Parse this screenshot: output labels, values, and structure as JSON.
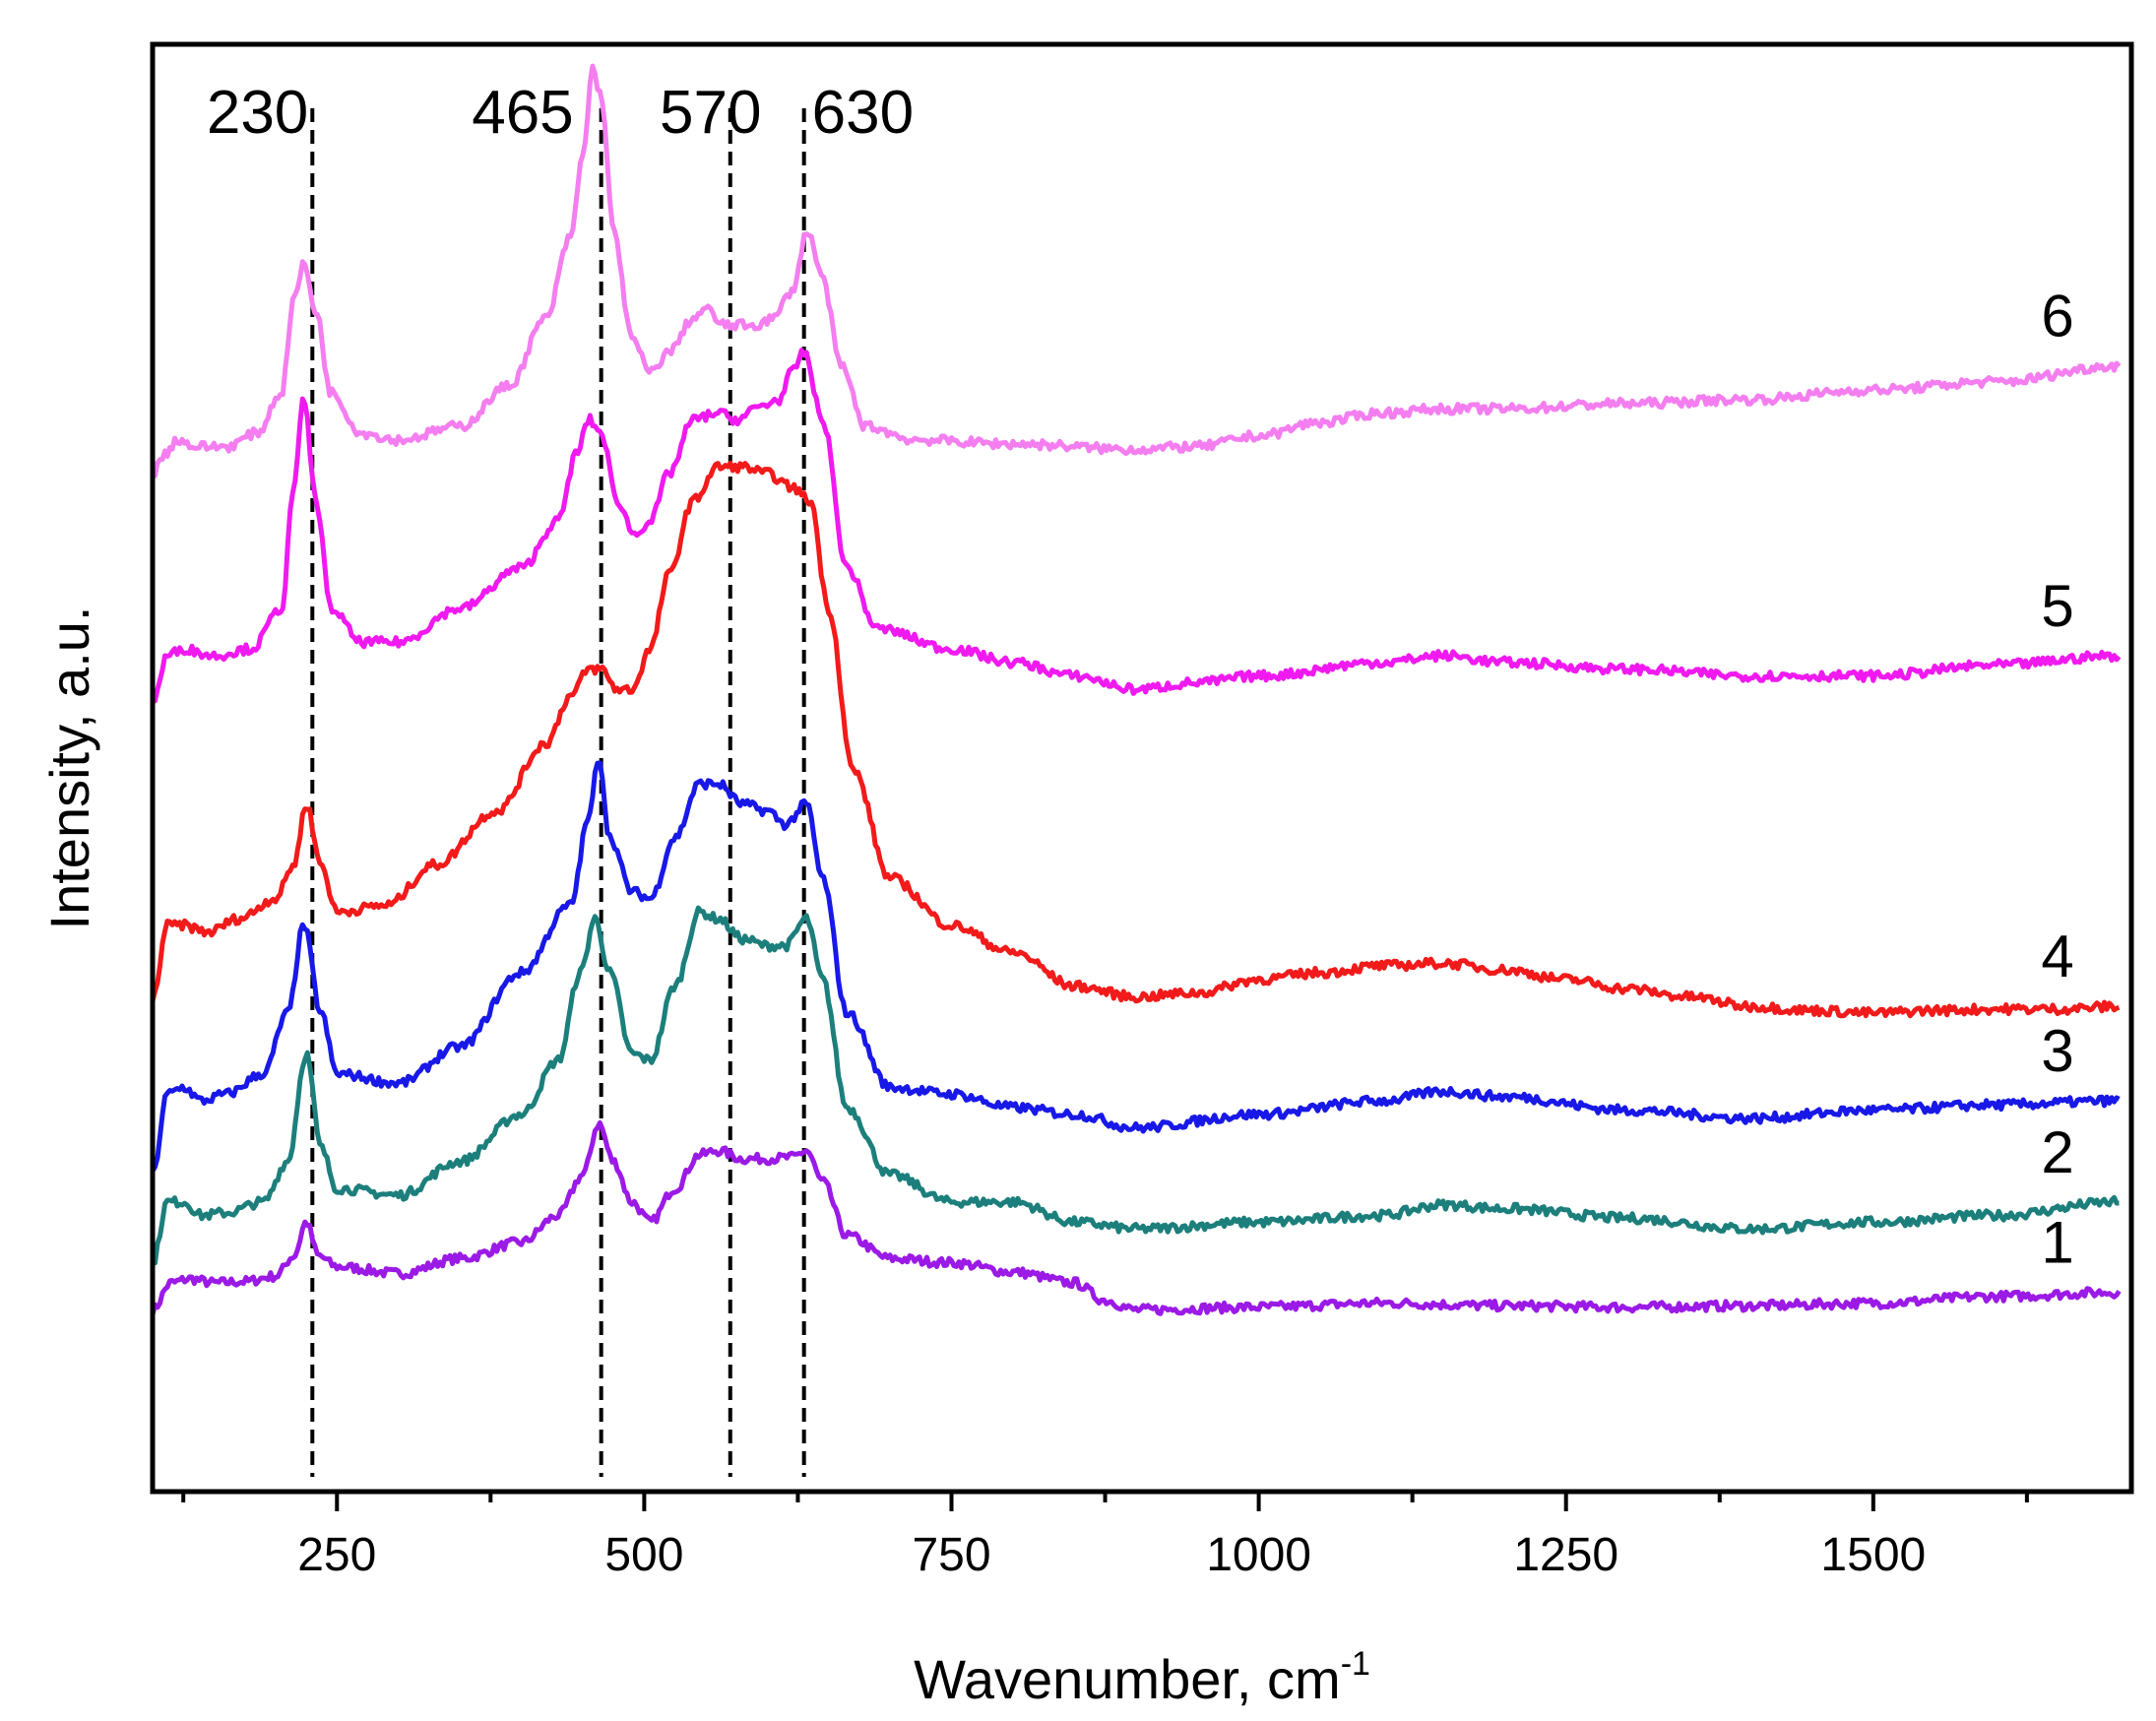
{
  "chart_data": {
    "type": "line",
    "title": "",
    "xlabel": "Wavenumber, cm",
    "xlabel_superscript": "-1",
    "ylabel": "Intensity, a.u.",
    "xlim": [
      100,
      1710
    ],
    "ylim": [
      0,
      1
    ],
    "y_ticks_shown": false,
    "grid": false,
    "x_ticks": [
      250,
      500,
      750,
      1000,
      1250,
      1500
    ],
    "x_tick_labels": [
      "250",
      "500",
      "750",
      "1000",
      "1250",
      "1500"
    ],
    "x_minor_ticks": [
      125,
      375,
      625,
      875,
      1125,
      1375,
      1625
    ],
    "reference_lines": [
      {
        "x": 230,
        "label": "230"
      },
      {
        "x": 465,
        "label": "465"
      },
      {
        "x": 570,
        "label": "570"
      },
      {
        "x": 630,
        "label": "630"
      }
    ],
    "series": [
      {
        "name": "1",
        "color": "#9B1AE6",
        "points": [
          [
            100,
            0.08
          ],
          [
            115,
            0.1
          ],
          [
            130,
            0.103
          ],
          [
            150,
            0.1
          ],
          [
            175,
            0.101
          ],
          [
            200,
            0.105
          ],
          [
            215,
            0.12
          ],
          [
            225,
            0.145
          ],
          [
            235,
            0.12
          ],
          [
            250,
            0.112
          ],
          [
            300,
            0.107
          ],
          [
            350,
            0.118
          ],
          [
            400,
            0.13
          ],
          [
            430,
            0.15
          ],
          [
            450,
            0.18
          ],
          [
            463,
            0.218
          ],
          [
            475,
            0.19
          ],
          [
            490,
            0.16
          ],
          [
            505,
            0.145
          ],
          [
            525,
            0.17
          ],
          [
            545,
            0.195
          ],
          [
            560,
            0.198
          ],
          [
            580,
            0.192
          ],
          [
            600,
            0.192
          ],
          [
            620,
            0.193
          ],
          [
            632,
            0.198
          ],
          [
            645,
            0.175
          ],
          [
            665,
            0.135
          ],
          [
            700,
            0.118
          ],
          [
            750,
            0.115
          ],
          [
            800,
            0.108
          ],
          [
            850,
            0.1
          ],
          [
            875,
            0.087
          ],
          [
            900,
            0.08
          ],
          [
            1000,
            0.082
          ],
          [
            1100,
            0.085
          ],
          [
            1200,
            0.083
          ],
          [
            1300,
            0.082
          ],
          [
            1400,
            0.083
          ],
          [
            1500,
            0.085
          ],
          [
            1600,
            0.09
          ],
          [
            1700,
            0.093
          ]
        ]
      },
      {
        "name": "2",
        "color": "#1C7F7C",
        "points": [
          [
            100,
            0.115
          ],
          [
            112,
            0.16
          ],
          [
            125,
            0.16
          ],
          [
            140,
            0.15
          ],
          [
            160,
            0.152
          ],
          [
            190,
            0.16
          ],
          [
            210,
            0.19
          ],
          [
            225,
            0.27
          ],
          [
            237,
            0.2
          ],
          [
            250,
            0.17
          ],
          [
            300,
            0.165
          ],
          [
            350,
            0.19
          ],
          [
            400,
            0.225
          ],
          [
            430,
            0.265
          ],
          [
            448,
            0.33
          ],
          [
            460,
            0.37
          ],
          [
            472,
            0.33
          ],
          [
            490,
            0.27
          ],
          [
            505,
            0.265
          ],
          [
            525,
            0.32
          ],
          [
            545,
            0.375
          ],
          [
            560,
            0.37
          ],
          [
            580,
            0.355
          ],
          [
            600,
            0.35
          ],
          [
            615,
            0.35
          ],
          [
            632,
            0.37
          ],
          [
            645,
            0.325
          ],
          [
            665,
            0.23
          ],
          [
            700,
            0.18
          ],
          [
            750,
            0.16
          ],
          [
            800,
            0.16
          ],
          [
            850,
            0.145
          ],
          [
            900,
            0.14
          ],
          [
            1000,
            0.145
          ],
          [
            1100,
            0.15
          ],
          [
            1150,
            0.158
          ],
          [
            1200,
            0.155
          ],
          [
            1300,
            0.148
          ],
          [
            1400,
            0.14
          ],
          [
            1500,
            0.145
          ],
          [
            1600,
            0.15
          ],
          [
            1700,
            0.16
          ]
        ]
      },
      {
        "name": "3",
        "color": "#1818E8",
        "points": [
          [
            100,
            0.18
          ],
          [
            112,
            0.24
          ],
          [
            125,
            0.245
          ],
          [
            140,
            0.235
          ],
          [
            160,
            0.24
          ],
          [
            190,
            0.255
          ],
          [
            210,
            0.3
          ],
          [
            223,
            0.365
          ],
          [
            237,
            0.3
          ],
          [
            250,
            0.255
          ],
          [
            300,
            0.248
          ],
          [
            350,
            0.275
          ],
          [
            400,
            0.33
          ],
          [
            440,
            0.38
          ],
          [
            455,
            0.445
          ],
          [
            463,
            0.49
          ],
          [
            472,
            0.43
          ],
          [
            490,
            0.39
          ],
          [
            505,
            0.385
          ],
          [
            525,
            0.43
          ],
          [
            545,
            0.47
          ],
          [
            560,
            0.47
          ],
          [
            580,
            0.455
          ],
          [
            600,
            0.45
          ],
          [
            615,
            0.44
          ],
          [
            632,
            0.455
          ],
          [
            645,
            0.4
          ],
          [
            665,
            0.3
          ],
          [
            700,
            0.245
          ],
          [
            750,
            0.24
          ],
          [
            800,
            0.23
          ],
          [
            850,
            0.225
          ],
          [
            900,
            0.215
          ],
          [
            1000,
            0.225
          ],
          [
            1100,
            0.235
          ],
          [
            1150,
            0.242
          ],
          [
            1200,
            0.238
          ],
          [
            1300,
            0.228
          ],
          [
            1400,
            0.222
          ],
          [
            1500,
            0.228
          ],
          [
            1600,
            0.232
          ],
          [
            1700,
            0.235
          ]
        ]
      },
      {
        "name": "4",
        "color": "#F21A1A",
        "points": [
          [
            100,
            0.31
          ],
          [
            112,
            0.365
          ],
          [
            125,
            0.365
          ],
          [
            145,
            0.36
          ],
          [
            170,
            0.37
          ],
          [
            200,
            0.385
          ],
          [
            215,
            0.41
          ],
          [
            225,
            0.455
          ],
          [
            237,
            0.41
          ],
          [
            250,
            0.375
          ],
          [
            290,
            0.38
          ],
          [
            330,
            0.41
          ],
          [
            380,
            0.45
          ],
          [
            420,
            0.5
          ],
          [
            440,
            0.535
          ],
          [
            455,
            0.555
          ],
          [
            465,
            0.555
          ],
          [
            478,
            0.54
          ],
          [
            490,
            0.54
          ],
          [
            505,
            0.57
          ],
          [
            520,
            0.625
          ],
          [
            540,
            0.68
          ],
          [
            560,
            0.705
          ],
          [
            580,
            0.705
          ],
          [
            600,
            0.7
          ],
          [
            620,
            0.69
          ],
          [
            635,
            0.68
          ],
          [
            650,
            0.6
          ],
          [
            670,
            0.48
          ],
          [
            700,
            0.4
          ],
          [
            750,
            0.365
          ],
          [
            800,
            0.345
          ],
          [
            850,
            0.32
          ],
          [
            900,
            0.312
          ],
          [
            950,
            0.315
          ],
          [
            1000,
            0.325
          ],
          [
            1050,
            0.33
          ],
          [
            1100,
            0.335
          ],
          [
            1150,
            0.337
          ],
          [
            1200,
            0.332
          ],
          [
            1250,
            0.325
          ],
          [
            1300,
            0.318
          ],
          [
            1350,
            0.312
          ],
          [
            1400,
            0.305
          ],
          [
            1450,
            0.302
          ],
          [
            1500,
            0.3
          ],
          [
            1550,
            0.302
          ],
          [
            1600,
            0.303
          ],
          [
            1650,
            0.303
          ],
          [
            1700,
            0.305
          ]
        ]
      },
      {
        "name": "5",
        "color": "#F01AF0",
        "points": [
          [
            100,
            0.53
          ],
          [
            112,
            0.565
          ],
          [
            125,
            0.57
          ],
          [
            150,
            0.565
          ],
          [
            180,
            0.57
          ],
          [
            205,
            0.6
          ],
          [
            215,
            0.69
          ],
          [
            223,
            0.755
          ],
          [
            233,
            0.68
          ],
          [
            245,
            0.6
          ],
          [
            270,
            0.575
          ],
          [
            300,
            0.575
          ],
          [
            350,
            0.6
          ],
          [
            400,
            0.63
          ],
          [
            430,
            0.665
          ],
          [
            445,
            0.715
          ],
          [
            455,
            0.74
          ],
          [
            465,
            0.73
          ],
          [
            478,
            0.68
          ],
          [
            492,
            0.655
          ],
          [
            505,
            0.665
          ],
          [
            520,
            0.7
          ],
          [
            540,
            0.74
          ],
          [
            560,
            0.745
          ],
          [
            575,
            0.74
          ],
          [
            595,
            0.75
          ],
          [
            610,
            0.755
          ],
          [
            620,
            0.775
          ],
          [
            630,
            0.79
          ],
          [
            645,
            0.74
          ],
          [
            665,
            0.63
          ],
          [
            690,
            0.585
          ],
          [
            750,
            0.57
          ],
          [
            800,
            0.56
          ],
          [
            850,
            0.55
          ],
          [
            900,
            0.54
          ],
          [
            950,
            0.545
          ],
          [
            1000,
            0.55
          ],
          [
            1100,
            0.56
          ],
          [
            1150,
            0.565
          ],
          [
            1200,
            0.56
          ],
          [
            1300,
            0.555
          ],
          [
            1400,
            0.55
          ],
          [
            1500,
            0.55
          ],
          [
            1600,
            0.558
          ],
          [
            1700,
            0.565
          ]
        ]
      },
      {
        "name": "6",
        "color": "#F47EF0",
        "points": [
          [
            100,
            0.7
          ],
          [
            110,
            0.715
          ],
          [
            120,
            0.725
          ],
          [
            135,
            0.72
          ],
          [
            160,
            0.72
          ],
          [
            185,
            0.73
          ],
          [
            205,
            0.76
          ],
          [
            215,
            0.83
          ],
          [
            223,
            0.855
          ],
          [
            233,
            0.82
          ],
          [
            245,
            0.76
          ],
          [
            270,
            0.73
          ],
          [
            300,
            0.725
          ],
          [
            350,
            0.735
          ],
          [
            390,
            0.765
          ],
          [
            420,
            0.815
          ],
          [
            440,
            0.875
          ],
          [
            450,
            0.935
          ],
          [
            458,
            1.0
          ],
          [
            465,
            0.98
          ],
          [
            475,
            0.88
          ],
          [
            490,
            0.8
          ],
          [
            505,
            0.775
          ],
          [
            520,
            0.79
          ],
          [
            540,
            0.815
          ],
          [
            550,
            0.822
          ],
          [
            565,
            0.81
          ],
          [
            590,
            0.81
          ],
          [
            605,
            0.815
          ],
          [
            620,
            0.835
          ],
          [
            633,
            0.88
          ],
          [
            645,
            0.845
          ],
          [
            660,
            0.78
          ],
          [
            680,
            0.735
          ],
          [
            720,
            0.725
          ],
          [
            800,
            0.722
          ],
          [
            900,
            0.718
          ],
          [
            950,
            0.72
          ],
          [
            1000,
            0.728
          ],
          [
            1050,
            0.738
          ],
          [
            1100,
            0.745
          ],
          [
            1150,
            0.748
          ],
          [
            1200,
            0.748
          ],
          [
            1300,
            0.752
          ],
          [
            1400,
            0.755
          ],
          [
            1500,
            0.762
          ],
          [
            1600,
            0.768
          ],
          [
            1700,
            0.78
          ]
        ]
      }
    ]
  }
}
